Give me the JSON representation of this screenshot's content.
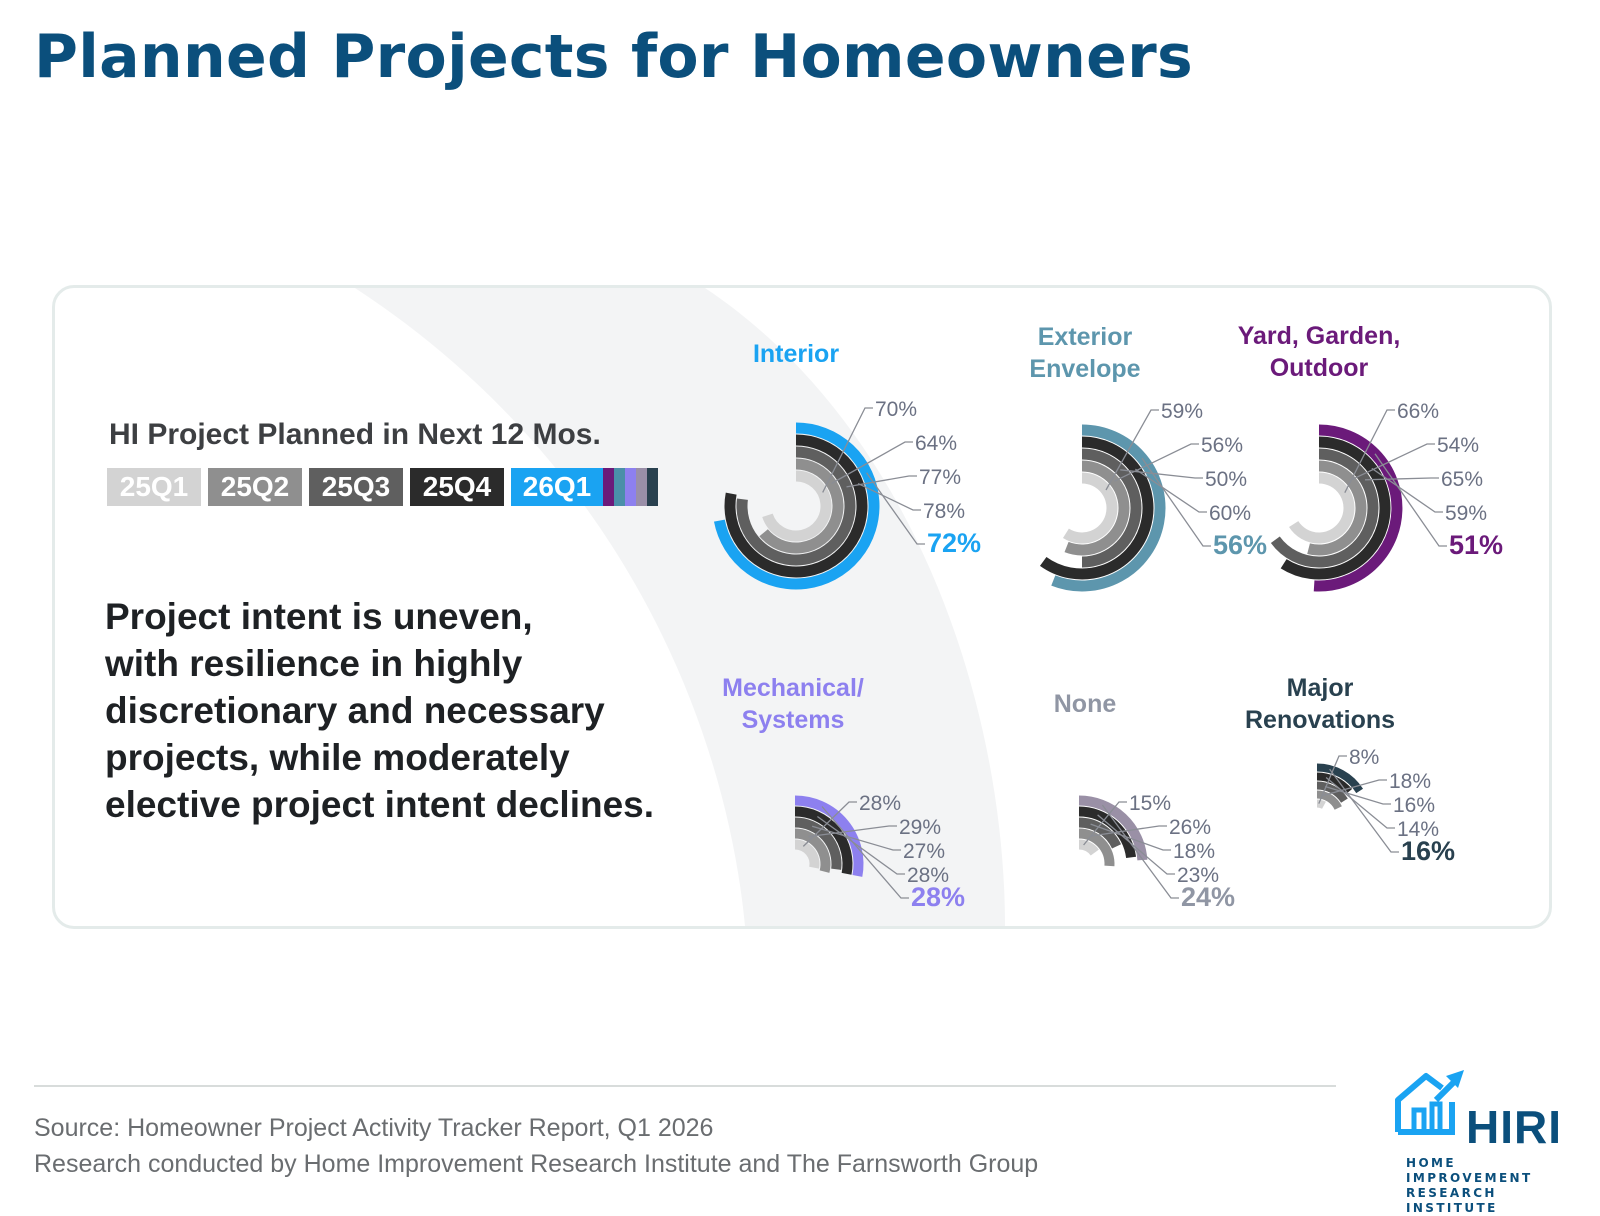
{
  "page": {
    "title": "Planned Projects for Homeowners",
    "takeaway": [
      "Project intent is uneven,",
      "with resilience in highly",
      "discretionary and necessary",
      "projects, while moderately",
      "elective project intent declines."
    ],
    "source": "Source: Homeowner Project Activity Tracker Report, Q1 2026",
    "credit": "Research conducted by Home Improvement Research Institute and The Farnsworth Group",
    "logo": {
      "icon": "house-arrow-icon",
      "word": "HIRI",
      "sub1": "HOME IMPROVEMENT",
      "sub2": "RESEARCH INSTITUTE"
    }
  },
  "legend": {
    "title": "HI Project Planned in Next 12 Mos.",
    "items": [
      {
        "label": "25Q1",
        "color": "#d3d3d3"
      },
      {
        "label": "25Q2",
        "color": "#8f8f8f"
      },
      {
        "label": "25Q3",
        "color": "#5f5f5f"
      },
      {
        "label": "25Q4",
        "color": "#2b2b2b"
      },
      {
        "label": "26Q1",
        "color": "#1aa3f2"
      }
    ],
    "category_strip_colors": [
      "#6b1a7a",
      "#4a8fa9",
      "#8d80ef",
      "#9a8fa8",
      "#29414f"
    ]
  },
  "chart_data": {
    "type": "radial-bar",
    "periods": [
      "25Q1",
      "25Q2",
      "25Q3",
      "25Q4",
      "26Q1"
    ],
    "period_colors": [
      "#d3d3d3",
      "#8f8f8f",
      "#5f5f5f",
      "#2b2b2b"
    ],
    "charts": [
      {
        "name": "Interior",
        "values": [
          70,
          64,
          77,
          78,
          72
        ],
        "highlight_color": "#1aa3f2",
        "label_color": "#1aa3f2"
      },
      {
        "name": "Exterior Envelope",
        "values": [
          59,
          56,
          50,
          60,
          56
        ],
        "highlight_color": "#5d96ad",
        "label_color": "#5d96ad"
      },
      {
        "name": "Yard, Garden, Outdoor",
        "values": [
          66,
          54,
          65,
          59,
          51
        ],
        "highlight_color": "#6b1a7a",
        "label_color": "#6b1a7a"
      },
      {
        "name": "Mechanical/ Systems",
        "values": [
          28,
          29,
          27,
          28,
          28
        ],
        "highlight_color": "#8d80ef",
        "label_color": "#8d80ef"
      },
      {
        "name": "None",
        "values": [
          15,
          26,
          18,
          23,
          24
        ],
        "highlight_color": "#9a90a6",
        "label_color": "#9096a4"
      },
      {
        "name": "Major Renovations",
        "values": [
          8,
          18,
          16,
          14,
          16
        ],
        "highlight_color": "#29414f",
        "label_color": "#29414f"
      }
    ]
  }
}
